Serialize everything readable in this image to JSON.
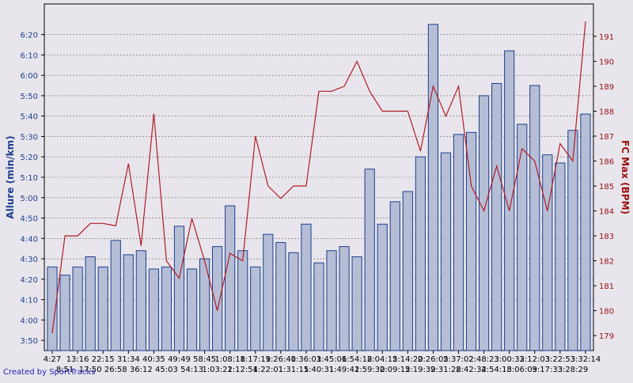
{
  "chart_data": {
    "type": "bar",
    "ylabel_left": "Allure (min/km)",
    "ylabel_right": "FC Max (BPM)",
    "credit": "Created by SportTracks",
    "colors": {
      "bar_fill": "#b6bed6",
      "bar_stroke": "#1d3f8f",
      "line": "#b01c24",
      "left_axis_text": "#1d3f8f",
      "right_axis_text": "#9c1010",
      "plot_bg": "#e8e6ec"
    },
    "left_ticks": [
      "3:50",
      "4:00",
      "4:10",
      "4:20",
      "4:30",
      "4:40",
      "4:50",
      "5:00",
      "5:10",
      "5:20",
      "5:30",
      "5:40",
      "5:50",
      "6:00",
      "6:10",
      "6:20"
    ],
    "left_range_sec": [
      225,
      395
    ],
    "right_ticks": [
      "179",
      "180",
      "181",
      "182",
      "183",
      "184",
      "185",
      "186",
      "187",
      "188",
      "189",
      "190",
      "191"
    ],
    "right_range": [
      178.4,
      192.3
    ],
    "categories": [
      "4:27",
      "8:51",
      "13:16",
      "17:50",
      "22:15",
      "26:58",
      "31:34",
      "36:12",
      "40:35",
      "45:03",
      "49:49",
      "54:13",
      "58:45",
      "1:03:22",
      "1:08:18",
      "1:12:54",
      "1:17:19",
      "1:22:01",
      "1:26:40",
      "1:31:15",
      "1:36:03",
      "1:40:31",
      "1:45:06",
      "1:49:42",
      "1:54:18",
      "1:59:30",
      "2:04:15",
      "2:09:15",
      "2:14:20",
      "2:19:39",
      "2:26:05",
      "2:31:28",
      "2:37:02",
      "2:42:34",
      "2:48:23",
      "2:54:18",
      "3:00:32",
      "3:06:09",
      "3:12:03",
      "3:17:33",
      "3:22:53",
      "3:28:29",
      "3:32:14"
    ],
    "x_labels_row1": [
      "4:27",
      "13:16",
      "22:15",
      "31:34",
      "40:35",
      "49:49",
      "58:45",
      "1:08:18",
      "1:17:19",
      "1:26:40",
      "1:36:03",
      "1:45:06",
      "1:54:18",
      "2:04:15",
      "2:14:20",
      "2:26:05",
      "2:37:02",
      "2:48:23",
      "3:00:32",
      "3:12:03",
      "3:22:53",
      "3:32:14"
    ],
    "x_labels_row2": [
      "8:51",
      "17:50",
      "26:58",
      "36:12",
      "45:03",
      "54:13",
      "1:03:22",
      "1:12:54",
      "1:22:01",
      "1:31:15",
      "1:40:31",
      "1:49:42",
      "1:59:30",
      "2:09:15",
      "2:19:39",
      "2:31:28",
      "2:42:34",
      "2:54:18",
      "3:06:09",
      "3:17:33",
      "3:28:29"
    ],
    "series": [
      {
        "name": "Allure (min/km)",
        "type": "bar",
        "values": [
          "4:26",
          "4:22",
          "4:26",
          "4:31",
          "4:26",
          "4:39",
          "4:32",
          "4:34",
          "4:25",
          "4:26",
          "4:46",
          "4:25",
          "4:30",
          "4:36",
          "4:56",
          "4:34",
          "4:26",
          "4:42",
          "4:38",
          "4:33",
          "4:47",
          "4:28",
          "4:34",
          "4:36",
          "4:31",
          "5:14",
          "4:47",
          "4:58",
          "5:03",
          "5:20",
          "6:25",
          "5:22",
          "5:31",
          "5:32",
          "5:50",
          "5:56",
          "6:12",
          "5:36",
          "5:55",
          "5:21",
          "5:17",
          "5:33",
          "5:41"
        ]
      },
      {
        "name": "FC Max (BPM)",
        "type": "line",
        "values": [
          179.1,
          183.0,
          183.0,
          183.5,
          183.5,
          183.4,
          185.9,
          182.6,
          187.9,
          182.0,
          181.3,
          183.7,
          182.0,
          180.0,
          182.3,
          182.0,
          187.0,
          185.0,
          184.5,
          185.0,
          185.0,
          188.8,
          188.8,
          189.0,
          190.0,
          188.8,
          188.0,
          188.0,
          188.0,
          186.4,
          189.0,
          187.8,
          189.0,
          185.0,
          184.0,
          185.8,
          184.0,
          186.5,
          186.0,
          184.0,
          186.7,
          186.0,
          191.6
        ]
      }
    ]
  }
}
